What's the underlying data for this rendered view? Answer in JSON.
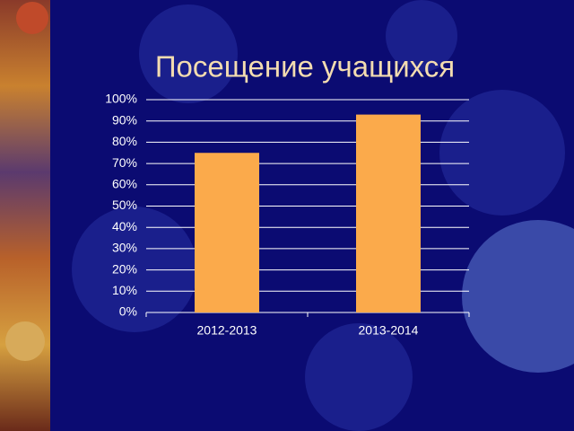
{
  "chart_data": {
    "type": "bar",
    "title": "Посещение учащихся",
    "categories": [
      "2012-2013",
      "2013-2014"
    ],
    "values": [
      75,
      93
    ],
    "color": "#fbaa4b",
    "ylim": [
      0,
      100
    ],
    "yticks": [
      {
        "value": 0,
        "label": "0%"
      },
      {
        "value": 10,
        "label": "10%"
      },
      {
        "value": 20,
        "label": "20%"
      },
      {
        "value": 30,
        "label": "30%"
      },
      {
        "value": 40,
        "label": "40%"
      },
      {
        "value": 50,
        "label": "50%"
      },
      {
        "value": 60,
        "label": "60%"
      },
      {
        "value": 70,
        "label": "70%"
      },
      {
        "value": 80,
        "label": "80%"
      },
      {
        "value": 90,
        "label": "90%"
      },
      {
        "value": 100,
        "label": "100%"
      }
    ],
    "grid": true
  }
}
